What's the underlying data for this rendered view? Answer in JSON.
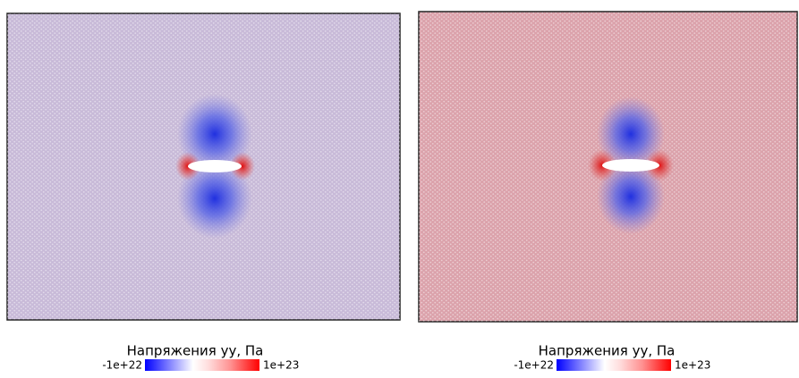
{
  "panels": [
    {
      "colorbar": {
        "title": "Напряжения yy, Па",
        "min_label": "-1e+22",
        "max_label": "1e+23"
      }
    },
    {
      "colorbar": {
        "title": "Напряжения yy, Па",
        "min_label": "-1e+22",
        "max_label": "1e+23"
      }
    }
  ]
}
